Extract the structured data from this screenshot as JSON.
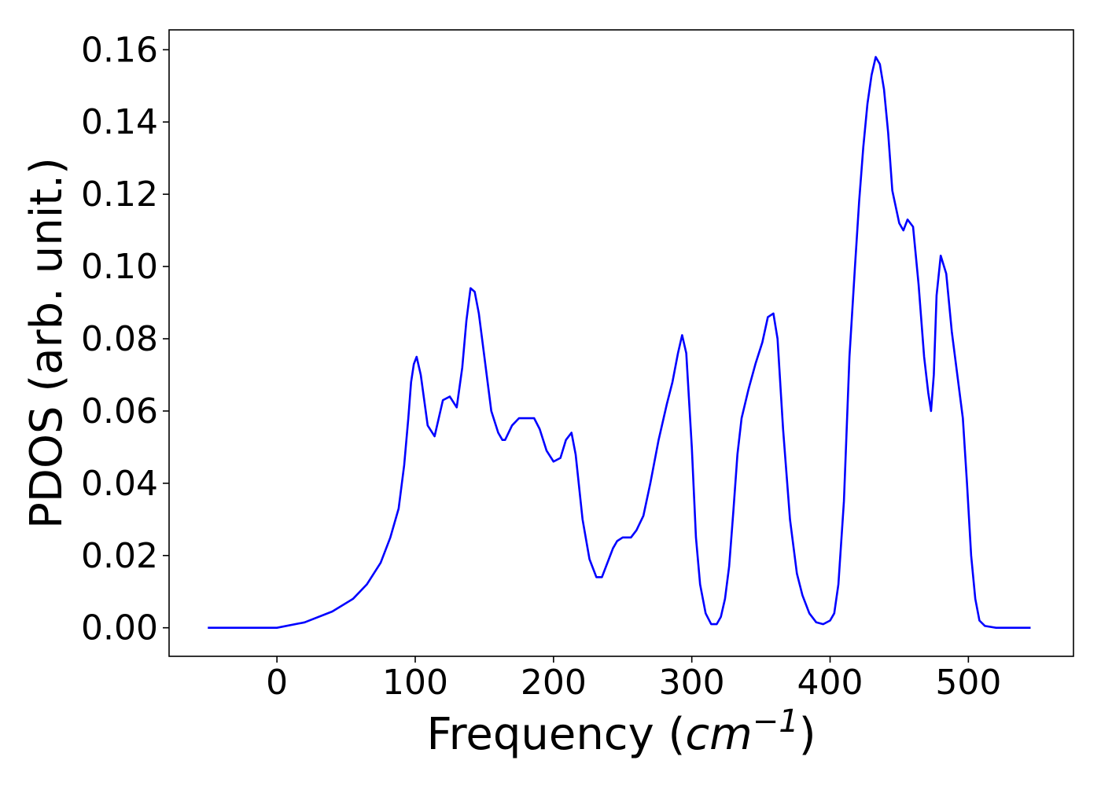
{
  "chart_data": {
    "type": "line",
    "title": "",
    "xlabel": "Frequency",
    "xlabel_unit": "cm",
    "xlabel_unit_exponent": "−1",
    "ylabel": "PDOS (arb. unit.)",
    "xlim": [
      -78,
      576
    ],
    "ylim": [
      -0.0079,
      0.1655
    ],
    "xticks": [
      0,
      100,
      200,
      300,
      400,
      500
    ],
    "xtick_labels": [
      "0",
      "100",
      "200",
      "300",
      "400",
      "500"
    ],
    "yticks": [
      0.0,
      0.02,
      0.04,
      0.06,
      0.08,
      0.1,
      0.12,
      0.14,
      0.16
    ],
    "ytick_labels": [
      "0.00",
      "0.02",
      "0.04",
      "0.06",
      "0.08",
      "0.10",
      "0.12",
      "0.14",
      "0.16"
    ],
    "grid": false,
    "legend": "none",
    "series": [
      {
        "color": "#0000ff",
        "x": [
          -50,
          -20,
          0,
          20,
          40,
          55,
          65,
          75,
          82,
          88,
          92,
          95,
          97,
          99,
          101,
          104,
          109,
          114,
          120,
          125,
          130,
          134,
          137,
          140,
          143,
          146,
          150,
          155,
          160,
          163,
          165,
          170,
          175,
          181,
          186,
          190,
          195,
          200,
          205,
          209,
          213,
          216,
          221,
          226,
          231,
          235,
          240,
          243,
          246,
          250,
          256,
          260,
          265,
          270,
          276,
          282,
          286,
          290,
          293,
          296,
          300,
          303,
          306,
          310,
          314,
          318,
          321,
          324,
          327,
          330,
          333,
          336,
          341,
          346,
          351,
          355,
          359,
          362,
          366,
          371,
          376,
          380,
          385,
          390,
          395,
          400,
          403,
          406,
          410,
          414,
          418,
          421,
          424,
          427,
          430,
          433,
          436,
          439,
          442,
          445,
          450,
          453,
          456,
          460,
          464,
          468,
          471,
          473,
          475,
          477,
          480,
          484,
          488,
          492,
          496,
          499,
          502,
          505,
          508,
          512,
          520,
          545
        ],
        "y": [
          0.0,
          0.0,
          0.0,
          0.0015,
          0.0045,
          0.008,
          0.012,
          0.018,
          0.025,
          0.033,
          0.045,
          0.058,
          0.068,
          0.073,
          0.075,
          0.07,
          0.056,
          0.053,
          0.063,
          0.064,
          0.061,
          0.072,
          0.085,
          0.094,
          0.093,
          0.087,
          0.075,
          0.06,
          0.054,
          0.052,
          0.052,
          0.056,
          0.058,
          0.058,
          0.058,
          0.055,
          0.049,
          0.046,
          0.047,
          0.052,
          0.054,
          0.048,
          0.03,
          0.019,
          0.014,
          0.014,
          0.019,
          0.022,
          0.024,
          0.025,
          0.025,
          0.027,
          0.031,
          0.04,
          0.052,
          0.062,
          0.068,
          0.076,
          0.081,
          0.076,
          0.05,
          0.025,
          0.012,
          0.004,
          0.001,
          0.001,
          0.003,
          0.008,
          0.017,
          0.032,
          0.048,
          0.058,
          0.066,
          0.073,
          0.079,
          0.086,
          0.087,
          0.08,
          0.055,
          0.03,
          0.015,
          0.009,
          0.004,
          0.0015,
          0.001,
          0.002,
          0.004,
          0.012,
          0.035,
          0.075,
          0.1,
          0.118,
          0.133,
          0.145,
          0.153,
          0.158,
          0.156,
          0.149,
          0.137,
          0.121,
          0.112,
          0.11,
          0.113,
          0.111,
          0.095,
          0.075,
          0.065,
          0.06,
          0.07,
          0.092,
          0.103,
          0.098,
          0.082,
          0.07,
          0.058,
          0.04,
          0.02,
          0.008,
          0.002,
          0.0005,
          0.0,
          0.0
        ]
      }
    ]
  }
}
